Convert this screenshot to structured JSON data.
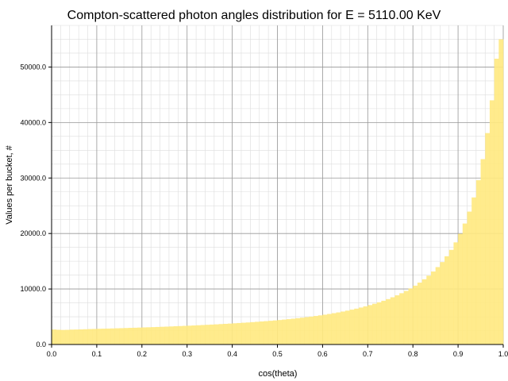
{
  "chart_data": {
    "type": "bar",
    "title": "Compton-scattered photon angles distribution for E = 5110.00 KeV",
    "xlabel": "cos(theta)",
    "ylabel": "Values per bucket, #",
    "xlim": [
      0.0,
      1.0
    ],
    "ylim": [
      0,
      57500
    ],
    "grid": true,
    "bar_color": "#ffe97f",
    "x_ticks": [
      "0.0",
      "0.1",
      "0.2",
      "0.3",
      "0.4",
      "0.5",
      "0.6",
      "0.7",
      "0.8",
      "0.9",
      "1.0"
    ],
    "y_ticks": [
      "0.0",
      "10000.0",
      "20000.0",
      "30000.0",
      "40000.0",
      "50000.0"
    ],
    "bin_width": 0.01,
    "x": [
      0.0,
      0.01,
      0.02,
      0.03,
      0.04,
      0.05,
      0.06,
      0.07,
      0.08,
      0.09,
      0.1,
      0.11,
      0.12,
      0.13,
      0.14,
      0.15,
      0.16,
      0.17,
      0.18,
      0.19,
      0.2,
      0.21,
      0.22,
      0.23,
      0.24,
      0.25,
      0.26,
      0.27,
      0.28,
      0.29,
      0.3,
      0.31,
      0.32,
      0.33,
      0.34,
      0.35,
      0.36,
      0.37,
      0.38,
      0.39,
      0.4,
      0.41,
      0.42,
      0.43,
      0.44,
      0.45,
      0.46,
      0.47,
      0.48,
      0.49,
      0.5,
      0.51,
      0.52,
      0.53,
      0.54,
      0.55,
      0.56,
      0.57,
      0.58,
      0.59,
      0.6,
      0.61,
      0.62,
      0.63,
      0.64,
      0.65,
      0.66,
      0.67,
      0.68,
      0.69,
      0.7,
      0.71,
      0.72,
      0.73,
      0.74,
      0.75,
      0.76,
      0.77,
      0.78,
      0.79,
      0.8,
      0.81,
      0.82,
      0.83,
      0.84,
      0.85,
      0.86,
      0.87,
      0.88,
      0.89,
      0.9,
      0.91,
      0.92,
      0.93,
      0.94,
      0.95,
      0.96,
      0.97,
      0.98,
      0.99
    ],
    "values": [
      2700,
      2650,
      2620,
      2640,
      2680,
      2700,
      2720,
      2750,
      2780,
      2800,
      2830,
      2850,
      2870,
      2890,
      2920,
      2940,
      2970,
      3000,
      3020,
      3050,
      3080,
      3100,
      3130,
      3160,
      3190,
      3220,
      3250,
      3290,
      3320,
      3360,
      3390,
      3430,
      3470,
      3510,
      3550,
      3590,
      3630,
      3680,
      3720,
      3770,
      3820,
      3870,
      3920,
      3970,
      4030,
      4090,
      4150,
      4210,
      4270,
      4340,
      4410,
      4490,
      4570,
      4650,
      4740,
      4830,
      4930,
      5030,
      5140,
      5250,
      5370,
      5500,
      5640,
      5780,
      5940,
      6100,
      6280,
      6460,
      6660,
      6870,
      7100,
      7340,
      7600,
      7880,
      8180,
      8510,
      8860,
      9240,
      9650,
      10100,
      10600,
      11150,
      11750,
      12400,
      13150,
      13950,
      14850,
      15900,
      17050,
      18400,
      19950,
      21800,
      23950,
      26500,
      29600,
      33400,
      38100,
      44000,
      51500,
      55000
    ]
  }
}
